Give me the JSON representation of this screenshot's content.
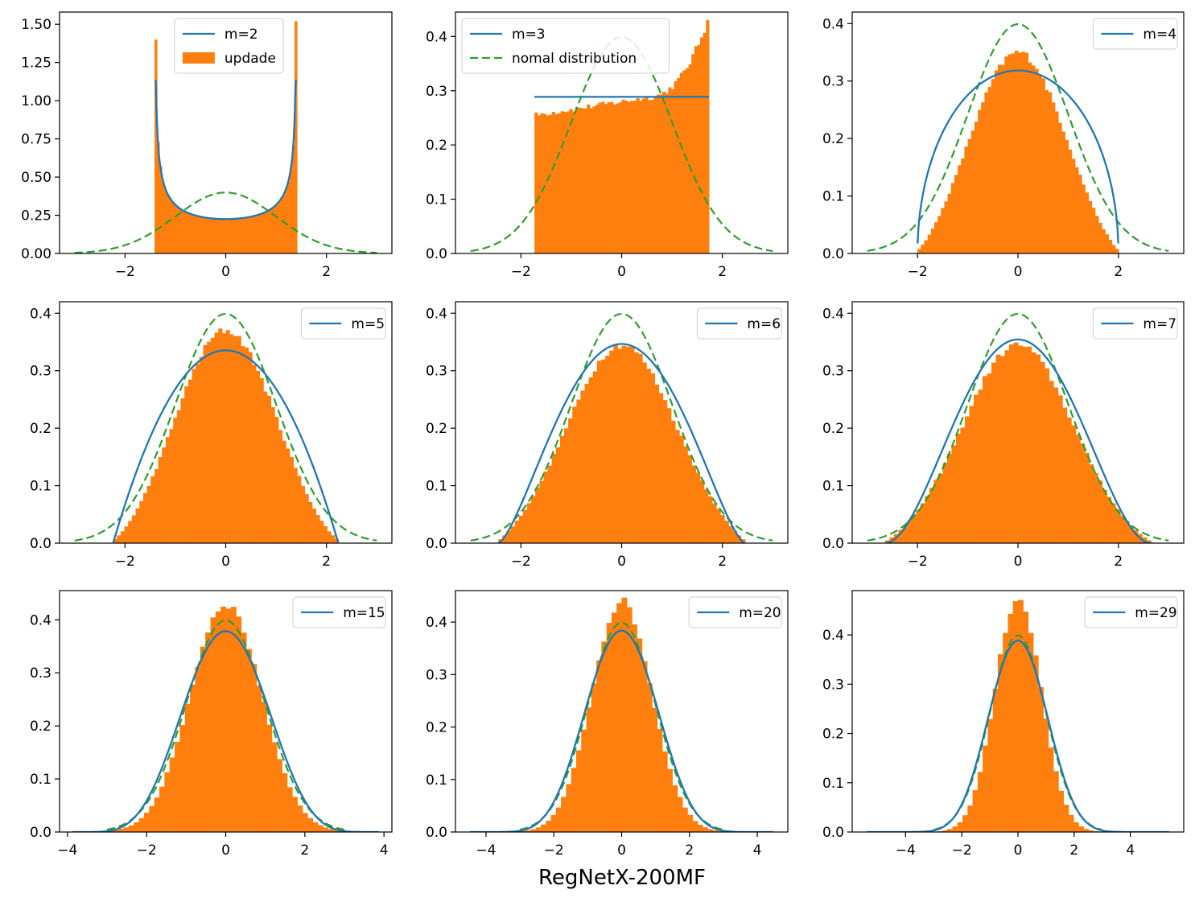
{
  "figure_title": "RegNetX-200MF",
  "colors": {
    "histogram": "#ff7f0e",
    "theory": "#1f77b4",
    "normal": "#2ca02c"
  },
  "chart_data": [
    {
      "type": "histogram",
      "m": 2,
      "legend_line": "m=2",
      "legend_hist": "updade",
      "legend_normal": null,
      "legend_loc": "upper-center",
      "xlim": [
        -3.3,
        3.3
      ],
      "ylim": [
        0,
        1.58
      ],
      "xticks": [
        -2,
        0,
        2
      ],
      "xtick_labels": [
        "−2",
        "0",
        "2"
      ],
      "yticks": [
        0,
        0.25,
        0.5,
        0.75,
        1.0,
        1.25,
        1.5
      ],
      "ytick_labels": [
        "0.00",
        "0.25",
        "0.50",
        "0.75",
        "1.00",
        "1.25",
        "1.50"
      ],
      "support": [
        -1.414,
        1.414
      ],
      "bins": 60
    },
    {
      "type": "histogram",
      "m": 3,
      "legend_line": "m=3",
      "legend_hist": null,
      "legend_normal": "nomal distribution",
      "legend_loc": "upper-left",
      "xlim": [
        -3.3,
        3.3
      ],
      "ylim": [
        0,
        0.445
      ],
      "xticks": [
        -2,
        0,
        2
      ],
      "xtick_labels": [
        "−2",
        "0",
        "2"
      ],
      "yticks": [
        0,
        0.1,
        0.2,
        0.3,
        0.4
      ],
      "ytick_labels": [
        "0.0",
        "0.1",
        "0.2",
        "0.3",
        "0.4"
      ],
      "support": [
        -1.732,
        1.732
      ],
      "bins": 60
    },
    {
      "type": "histogram",
      "m": 4,
      "legend_line": "m=4",
      "legend_hist": null,
      "legend_normal": null,
      "legend_loc": "upper-right",
      "xlim": [
        -3.3,
        3.3
      ],
      "ylim": [
        0,
        0.42
      ],
      "xticks": [
        -2,
        0,
        2
      ],
      "xtick_labels": [
        "−2",
        "0",
        "2"
      ],
      "yticks": [
        0,
        0.1,
        0.2,
        0.3,
        0.4
      ],
      "ytick_labels": [
        "0.0",
        "0.1",
        "0.2",
        "0.3",
        "0.4"
      ],
      "support": [
        -2.0,
        2.0
      ],
      "bins": 60
    },
    {
      "type": "histogram",
      "m": 5,
      "legend_line": "m=5",
      "legend_hist": null,
      "legend_normal": null,
      "legend_loc": "upper-right",
      "xlim": [
        -3.3,
        3.3
      ],
      "ylim": [
        0,
        0.42
      ],
      "xticks": [
        -2,
        0,
        2
      ],
      "xtick_labels": [
        "−2",
        "0",
        "2"
      ],
      "yticks": [
        0,
        0.1,
        0.2,
        0.3,
        0.4
      ],
      "ytick_labels": [
        "0.0",
        "0.1",
        "0.2",
        "0.3",
        "0.4"
      ],
      "support": [
        -2.236,
        2.236
      ],
      "bins": 60
    },
    {
      "type": "histogram",
      "m": 6,
      "legend_line": "m=6",
      "legend_hist": null,
      "legend_normal": null,
      "legend_loc": "upper-right",
      "xlim": [
        -3.3,
        3.3
      ],
      "ylim": [
        0,
        0.42
      ],
      "xticks": [
        -2,
        0,
        2
      ],
      "xtick_labels": [
        "−2",
        "0",
        "2"
      ],
      "yticks": [
        0,
        0.1,
        0.2,
        0.3,
        0.4
      ],
      "ytick_labels": [
        "0.0",
        "0.1",
        "0.2",
        "0.3",
        "0.4"
      ],
      "support": [
        -2.449,
        2.449
      ],
      "bins": 60
    },
    {
      "type": "histogram",
      "m": 7,
      "legend_line": "m=7",
      "legend_hist": null,
      "legend_normal": null,
      "legend_loc": "upper-right",
      "xlim": [
        -3.3,
        3.3
      ],
      "ylim": [
        0,
        0.42
      ],
      "xticks": [
        -2,
        0,
        2
      ],
      "xtick_labels": [
        "−2",
        "0",
        "2"
      ],
      "yticks": [
        0,
        0.1,
        0.2,
        0.3,
        0.4
      ],
      "ytick_labels": [
        "0.0",
        "0.1",
        "0.2",
        "0.3",
        "0.4"
      ],
      "support": [
        -2.646,
        2.646
      ],
      "bins": 60
    },
    {
      "type": "histogram",
      "m": 15,
      "legend_line": "m=15",
      "legend_hist": null,
      "legend_normal": null,
      "legend_loc": "upper-right",
      "xlim": [
        -4.2,
        4.2
      ],
      "ylim": [
        0,
        0.455
      ],
      "xticks": [
        -4,
        -2,
        0,
        2,
        4
      ],
      "xtick_labels": [
        "−4",
        "−2",
        "0",
        "2",
        "4"
      ],
      "yticks": [
        0,
        0.1,
        0.2,
        0.3,
        0.4
      ],
      "ytick_labels": [
        "0.0",
        "0.1",
        "0.2",
        "0.3",
        "0.4"
      ],
      "support": [
        -3.873,
        3.873
      ],
      "bins": 60
    },
    {
      "type": "histogram",
      "m": 20,
      "legend_line": "m=20",
      "legend_hist": null,
      "legend_normal": null,
      "legend_loc": "upper-right",
      "xlim": [
        -4.9,
        4.9
      ],
      "ylim": [
        0,
        0.46
      ],
      "xticks": [
        -4,
        -2,
        0,
        2,
        4
      ],
      "xtick_labels": [
        "−4",
        "−2",
        "0",
        "2",
        "4"
      ],
      "yticks": [
        0,
        0.1,
        0.2,
        0.3,
        0.4
      ],
      "ytick_labels": [
        "0.0",
        "0.1",
        "0.2",
        "0.3",
        "0.4"
      ],
      "support": [
        -4.472,
        4.472
      ],
      "bins": 60
    },
    {
      "type": "histogram",
      "m": 29,
      "legend_line": "m=29",
      "legend_hist": null,
      "legend_normal": null,
      "legend_loc": "upper-right",
      "xlim": [
        -5.9,
        5.9
      ],
      "ylim": [
        0,
        0.49
      ],
      "xticks": [
        -4,
        -2,
        0,
        2,
        4
      ],
      "xtick_labels": [
        "−4",
        "−2",
        "0",
        "2",
        "4"
      ],
      "yticks": [
        0,
        0.1,
        0.2,
        0.3,
        0.4
      ],
      "ytick_labels": [
        "0.0",
        "0.1",
        "0.2",
        "0.3",
        "0.4"
      ],
      "support": [
        -5.385,
        5.385
      ],
      "bins": 60
    }
  ]
}
